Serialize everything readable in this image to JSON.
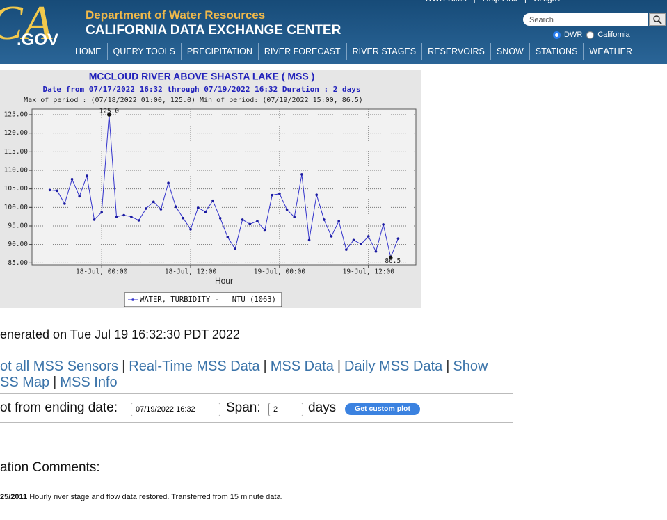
{
  "header": {
    "logo_mark": "CA",
    "logo_text": ".GOV",
    "department": "Department of Water Resources",
    "center": "CALIFORNIA DATA EXCHANGE CENTER",
    "top_links": [
      "DWR Sites",
      "Help Link",
      "CA.gov"
    ],
    "search_placeholder": "Search",
    "radio_options": [
      "DWR",
      "California"
    ]
  },
  "nav": [
    "HOME",
    "QUERY TOOLS",
    "PRECIPITATION",
    "RIVER FORECAST",
    "RIVER STAGES",
    "RESERVOIRS",
    "SNOW",
    "STATIONS",
    "WEATHER"
  ],
  "chart_data": {
    "type": "line",
    "title": "MCCLOUD RIVER ABOVE SHASTA LAKE ( MSS )",
    "subtitle": "Date from 07/17/2022 16:32 through 07/19/2022 16:32 Duration : 2 days",
    "period_note": "Max of period : (07/18/2022 01:00, 125.0)  Min of period: (07/19/2022 15:00,  86.5)",
    "x_label": "Hour",
    "x": [
      -7,
      -6,
      -5,
      -4,
      -3,
      -2,
      -1,
      0,
      1,
      2,
      3,
      4,
      5,
      6,
      7,
      8,
      9,
      10,
      11,
      12,
      13,
      14,
      15,
      16,
      17,
      18,
      19,
      20,
      21,
      22,
      23,
      24,
      25,
      26,
      27,
      28,
      29,
      30,
      31,
      32,
      33,
      34,
      35,
      36,
      37,
      38,
      39,
      40
    ],
    "series": [
      {
        "name": "WATER, TURBIDITY -   NTU (1063)",
        "color": "#3333cc",
        "values": [
          104.7,
          104.5,
          101,
          107.6,
          103,
          108.5,
          96.7,
          98.7,
          125,
          97.5,
          97.9,
          97.5,
          96.5,
          99.7,
          101.5,
          99.5,
          106.6,
          100.2,
          97.1,
          94.1,
          99.9,
          98.8,
          101.8,
          97.1,
          92,
          88.8,
          96.7,
          95.5,
          96.3,
          93.8,
          103.3,
          103.7,
          99.4,
          97.4,
          108.9,
          91.2,
          103.4,
          96.7,
          92.2,
          96.3,
          88.6,
          91.2,
          90.1,
          92.2,
          88.1,
          95.4,
          86.5,
          91.6
        ]
      }
    ],
    "annotations": [
      "125.0",
      "86.5"
    ],
    "xlim": [
      -9.4,
      42.4
    ],
    "xticks": [
      {
        "value": 0,
        "label": "18-Jul, 00:00"
      },
      {
        "value": 12,
        "label": "18-Jul, 12:00"
      },
      {
        "value": 24,
        "label": "19-Jul, 00:00"
      },
      {
        "value": 36,
        "label": "19-Jul, 12:00"
      }
    ],
    "ylim": [
      84.5,
      126.5
    ],
    "yticks": [
      {
        "value": 85,
        "label": "85.00"
      },
      {
        "value": 90,
        "label": "90.00"
      },
      {
        "value": 95,
        "label": "95.00"
      },
      {
        "value": 100,
        "label": "100.00"
      },
      {
        "value": 105,
        "label": "105.00"
      },
      {
        "value": 110,
        "label": "110.00"
      },
      {
        "value": 115,
        "label": "115.00"
      },
      {
        "value": 120,
        "label": "120.00"
      },
      {
        "value": 125,
        "label": "125.00"
      }
    ],
    "grid": true
  },
  "generated": "enerated on Tue Jul 19 16:32:30 PDT 2022",
  "separator": "|",
  "links": [
    "ot all MSS Sensors",
    "Real-Time MSS Data",
    "MSS Data",
    "Daily MSS Data",
    "Show",
    "SS Map",
    "MSS Info"
  ],
  "form": {
    "label": "ot from ending date:",
    "date": "07/19/2022 16:32",
    "span_label": "Span:",
    "span": "2",
    "days": "days",
    "button": "Get custom plot"
  },
  "comments": {
    "heading": "ation Comments:",
    "date": "25/2011",
    "text": "Hourly river stage and flow data restored. Transferred from 15 minute data."
  }
}
